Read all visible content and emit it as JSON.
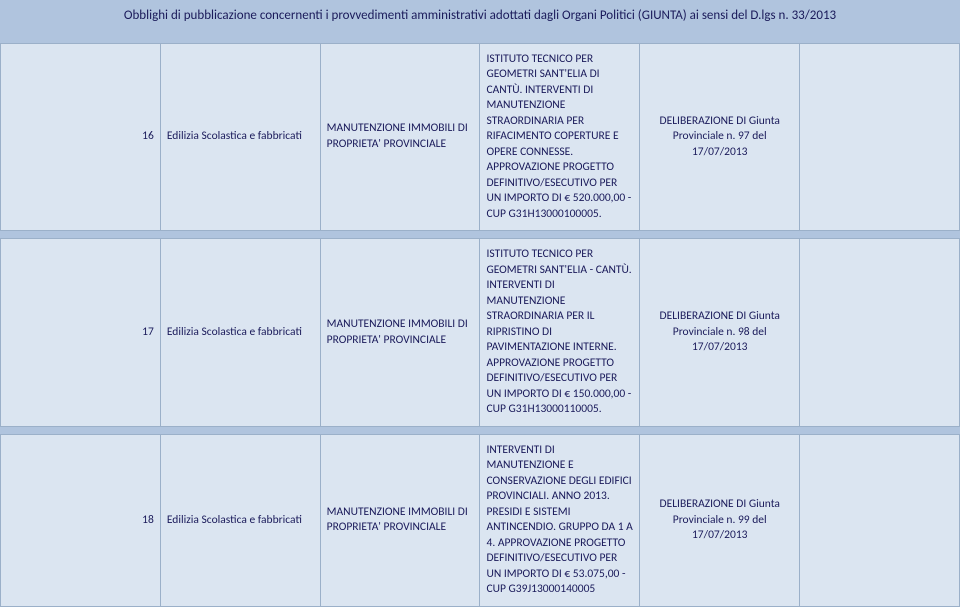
{
  "title": "Obblighi di pubblicazione concernenti i provvedimenti amministrativi adottati dagli Organi Politici (GIUNTA) ai sensi del D.lgs n. 33/2013",
  "rows": [
    {
      "num": "16",
      "area": "Edilizia Scolastica e fabbricati",
      "dept": "MANUTENZIONE IMMOBILI DI PROPRIETA' PROVINCIALE",
      "desc": "ISTITUTO TECNICO PER GEOMETRI SANT'ELIA DI CANTÙ. INTERVENTI DI MANUTENZIONE STRAORDINARIA PER RIFACIMENTO COPERTURE E OPERE CONNESSE. APPROVAZIONE PROGETTO DEFINITIVO/ESECUTIVO PER UN IMPORTO DI € 520.000,00 - CUP G31H13000100005.",
      "act": "DELIBERAZIONE DI Giunta Provinciale n. 97 del 17/07/2013",
      "last": ""
    },
    {
      "num": "17",
      "area": "Edilizia Scolastica e fabbricati",
      "dept": "MANUTENZIONE IMMOBILI DI PROPRIETA' PROVINCIALE",
      "desc": "ISTITUTO TECNICO PER GEOMETRI SANT'ELIA - CANTÙ. INTERVENTI DI MANUTENZIONE STRAORDINARIA PER IL RIPRISTINO DI PAVIMENTAZIONE INTERNE. APPROVAZIONE PROGETTO DEFINITIVO/ESECUTIVO PER UN IMPORTO DI € 150.000,00 - CUP G31H13000110005.",
      "act": "DELIBERAZIONE DI Giunta Provinciale n. 98 del 17/07/2013",
      "last": ""
    },
    {
      "num": "18",
      "area": "Edilizia Scolastica e fabbricati",
      "dept": "MANUTENZIONE IMMOBILI DI PROPRIETA' PROVINCIALE",
      "desc": "INTERVENTI DI MANUTENZIONE E CONSERVAZIONE DEGLI EDIFICI PROVINCIALI. ANNO 2013. PRESIDI E SISTEMI ANTINCENDIO. GRUPPO DA 1 A 4. APPROVAZIONE PROGETTO DEFINITIVO/ESECUTIVO PER UN IMPORTO DI € 53.075,00 - CUP G39J13000140005",
      "act": "DELIBERAZIONE DI Giunta Provinciale n. 99 del 17/07/2013",
      "last": ""
    }
  ],
  "styles": {
    "page_bg": "#b0c4de",
    "cell_bg": "#dbe5f1",
    "border_color": "#9bb0c9",
    "text_color": "#1a1a5a",
    "title_fontsize": 13,
    "cell_fontsize": 11.5
  }
}
